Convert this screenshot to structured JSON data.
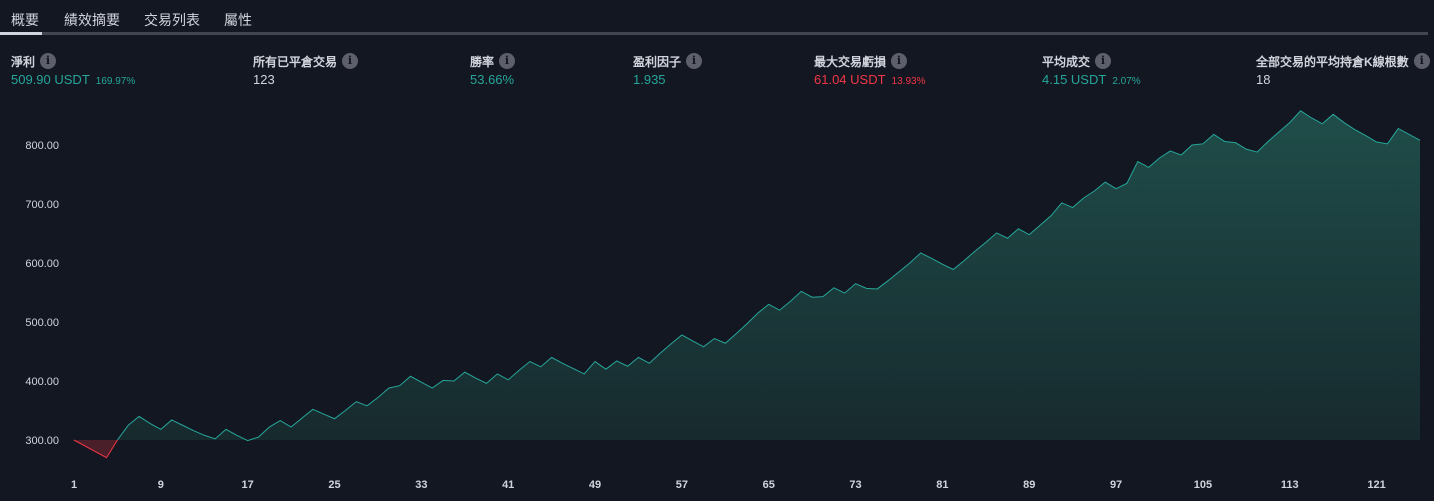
{
  "tabs": [
    {
      "label": "概要",
      "active": true
    },
    {
      "label": "績效摘要",
      "active": false
    },
    {
      "label": "交易列表",
      "active": false
    },
    {
      "label": "屬性",
      "active": false
    }
  ],
  "stats": {
    "net_profit": {
      "label": "淨利",
      "value": "509.90 USDT",
      "pct": "169.97%"
    },
    "total_trades": {
      "label": "所有已平倉交易",
      "value": "123"
    },
    "win_rate": {
      "label": "勝率",
      "value": "53.66%"
    },
    "profit_factor": {
      "label": "盈利因子",
      "value": "1.935"
    },
    "max_drawdown": {
      "label": "最大交易虧損",
      "value": "61.04 USDT",
      "pct": "13.93%"
    },
    "avg_trade": {
      "label": "平均成交",
      "value": "4.15 USDT",
      "pct": "2.07%"
    },
    "avg_bars": {
      "label": "全部交易的平均持倉K線根數",
      "value": "18"
    }
  },
  "colors": {
    "background": "#131722",
    "positive": "#26a69a",
    "negative": "#f23645",
    "text": "#d1d4dc",
    "area_top": "#1f4d49",
    "area_bottom": "#172a2e"
  },
  "icons": {
    "info": "info-icon"
  },
  "chart_data": {
    "type": "area",
    "baseline": 300,
    "ylim": [
      250,
      870
    ],
    "y_ticks": [
      "800.00",
      "700.00",
      "600.00",
      "500.00",
      "400.00",
      "300.00"
    ],
    "x_ticks": [
      "1",
      "9",
      "17",
      "25",
      "33",
      "41",
      "49",
      "57",
      "65",
      "73",
      "81",
      "89",
      "97",
      "105",
      "113",
      "121"
    ],
    "xlim": [
      1,
      125
    ],
    "x": [
      1,
      4,
      5,
      6,
      7,
      8,
      9,
      10,
      11,
      12,
      13,
      14,
      15,
      16,
      17,
      18,
      19,
      20,
      21,
      22,
      23,
      24,
      25,
      26,
      27,
      28,
      29,
      30,
      31,
      32,
      33,
      34,
      35,
      36,
      37,
      38,
      39,
      40,
      41,
      42,
      43,
      44,
      45,
      46,
      47,
      48,
      49,
      50,
      51,
      52,
      53,
      54,
      55,
      56,
      57,
      58,
      59,
      60,
      61,
      62,
      63,
      64,
      65,
      66,
      67,
      68,
      69,
      70,
      71,
      72,
      73,
      74,
      75,
      76,
      77,
      78,
      79,
      80,
      81,
      82,
      83,
      84,
      85,
      86,
      87,
      88,
      89,
      90,
      91,
      92,
      93,
      94,
      95,
      96,
      97,
      98,
      99,
      100,
      101,
      102,
      103,
      104,
      105,
      106,
      107,
      108,
      109,
      110,
      111,
      112,
      113,
      114,
      115,
      116,
      117,
      118,
      119,
      120,
      121,
      122,
      123,
      125
    ],
    "values": [
      300,
      270,
      300,
      325,
      340,
      328,
      318,
      334,
      325,
      316,
      308,
      302,
      318,
      308,
      299,
      305,
      322,
      333,
      322,
      337,
      352,
      344,
      336,
      350,
      365,
      358,
      372,
      388,
      392,
      408,
      398,
      388,
      401,
      400,
      415,
      405,
      396,
      412,
      402,
      418,
      433,
      424,
      440,
      430,
      421,
      412,
      433,
      420,
      434,
      425,
      440,
      430,
      447,
      463,
      478,
      468,
      458,
      472,
      464,
      480,
      497,
      515,
      530,
      520,
      535,
      552,
      542,
      543,
      558,
      549,
      565,
      557,
      556,
      570,
      585,
      600,
      617,
      608,
      598,
      589,
      604,
      620,
      635,
      651,
      642,
      658,
      648,
      664,
      680,
      702,
      694,
      710,
      722,
      737,
      726,
      735,
      772,
      762,
      778,
      790,
      783,
      800,
      802,
      818,
      806,
      804,
      793,
      788,
      806,
      822,
      838,
      858,
      846,
      836,
      852,
      838,
      826,
      816,
      805,
      802,
      828,
      808
    ]
  }
}
